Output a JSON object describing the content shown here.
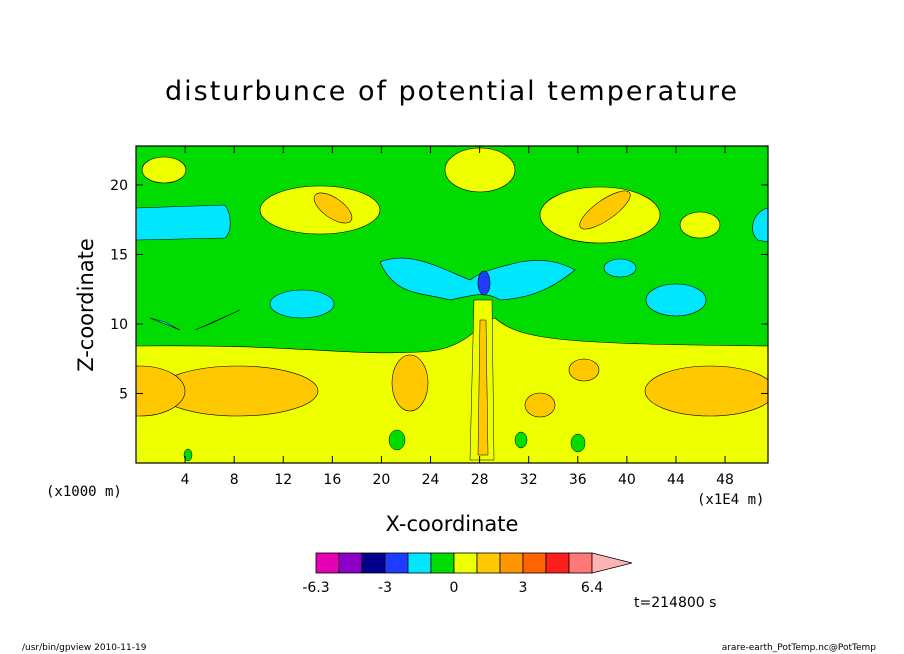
{
  "figure": {
    "title": "disturbunce of potential temperature",
    "timestamp": "t=214800 s",
    "footer_left": "/usr/bin/gpview   2010-11-19",
    "footer_right": "arare-earth_PotTemp.nc@PotTemp"
  },
  "chart_data": {
    "type": "heatmap",
    "title": "disturbunce of potential temperature",
    "xlabel": "X-coordinate",
    "ylabel": "Z-coordinate",
    "x_unit_label": "(x1000 m)",
    "x_scale_label": "(x1E4 m)",
    "xlim": [
      0,
      51.5
    ],
    "ylim": [
      0,
      22.8
    ],
    "xticks": [
      4,
      8,
      12,
      16,
      20,
      24,
      28,
      32,
      36,
      40,
      44,
      48
    ],
    "yticks": [
      5,
      10,
      15,
      20
    ],
    "colorbar": {
      "tick_labels": [
        "-6.3",
        "-3",
        "0",
        "3",
        "6.4"
      ],
      "colors": [
        "#e600b4",
        "#8c00c8",
        "#00008c",
        "#1e3cff",
        "#00e6ff",
        "#00dc00",
        "#eeff00",
        "#ffc800",
        "#ff9600",
        "#ff6400",
        "#ff1e1e",
        "#ff7878",
        "#ffb4b4"
      ]
    },
    "regions": [
      {
        "level": "positive_weak",
        "color": "#eeff00",
        "desc": "lower layer z<8.5"
      },
      {
        "level": "positive_mid",
        "color": "#ffc800",
        "desc": "lenses near z=5"
      },
      {
        "level": "zero",
        "color": "#00dc00",
        "desc": "upper layer"
      },
      {
        "level": "negative_weak",
        "color": "#00e6ff",
        "desc": "cells near z=10-17"
      },
      {
        "level": "negative_strong",
        "color": "#1e3cff",
        "desc": "core near x=28,z=13"
      }
    ]
  }
}
